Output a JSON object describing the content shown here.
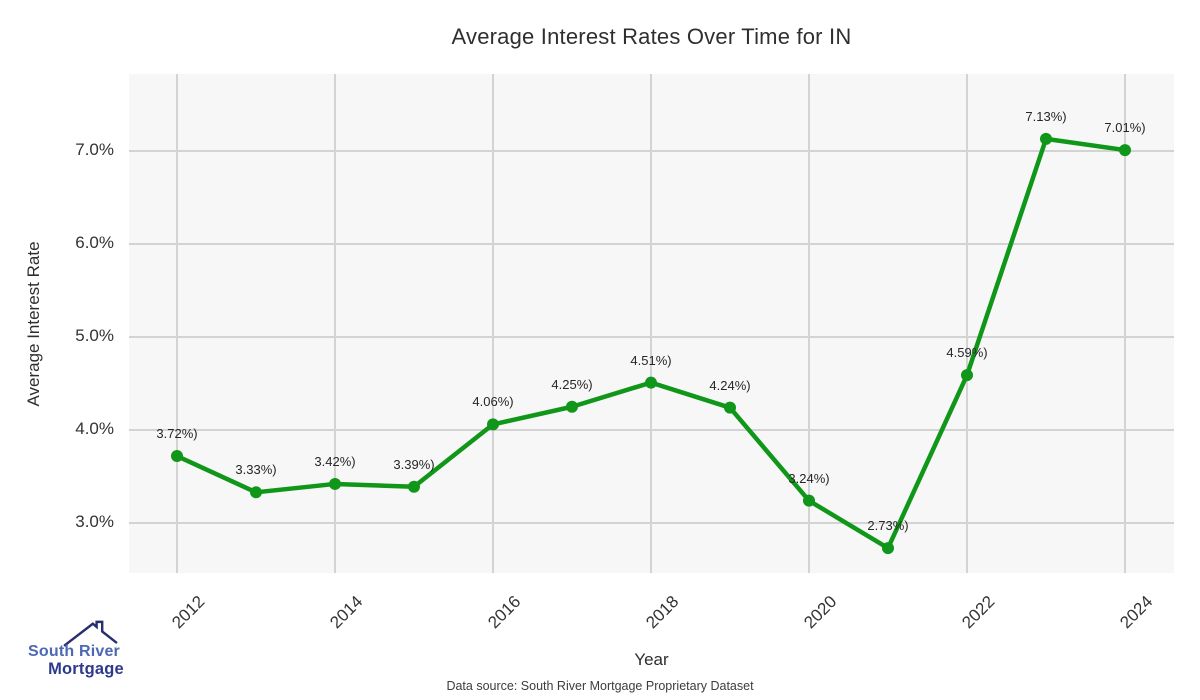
{
  "title": "Average Interest Rates Over Time for IN",
  "chart_data": {
    "type": "line",
    "title": "Average Interest Rates Over Time for IN",
    "xlabel": "Year",
    "ylabel": "Average Interest Rate",
    "x": [
      2012,
      2013,
      2014,
      2015,
      2016,
      2017,
      2018,
      2019,
      2020,
      2021,
      2022,
      2023,
      2024
    ],
    "values": [
      3.72,
      3.33,
      3.42,
      3.39,
      4.06,
      4.25,
      4.51,
      4.24,
      3.24,
      2.73,
      4.59,
      7.13,
      7.01
    ],
    "point_labels": [
      "3.72%)",
      "3.33%)",
      "3.42%)",
      "3.39%)",
      "4.06%)",
      "4.25%)",
      "4.51%)",
      "4.24%)",
      "3.24%)",
      "2.73%)",
      "4.59%)",
      "7.13%)",
      "7.01%)"
    ],
    "x_tick_years": [
      2012,
      2014,
      2016,
      2018,
      2020,
      2022,
      2024
    ],
    "x_tick_labels": [
      "2012",
      "2014",
      "2016",
      "2018",
      "2020",
      "2022",
      "2024"
    ],
    "y_tick_values": [
      3,
      4,
      5,
      6,
      7
    ],
    "y_tick_labels": [
      "3.0%",
      "4.0%",
      "5.0%",
      "6.0%",
      "7.0%"
    ],
    "xlim": [
      2011.4,
      2024.6
    ],
    "ylim": [
      2.46,
      7.83
    ],
    "grid": true,
    "legend_position": "none",
    "line_color": "#109618",
    "marker_color": "#109618",
    "plot_bg_color": "#f7f7f7",
    "grid_color": "#d3d3d3"
  },
  "footer": {
    "source_text": "Data source: South River Mortgage Proprietary Dataset"
  },
  "logo": {
    "line1": "South River",
    "line2": "Mortgage",
    "line1_color": "#4c69b1",
    "line2_color": "#2d3a8c",
    "roof_color": "#27306e"
  }
}
